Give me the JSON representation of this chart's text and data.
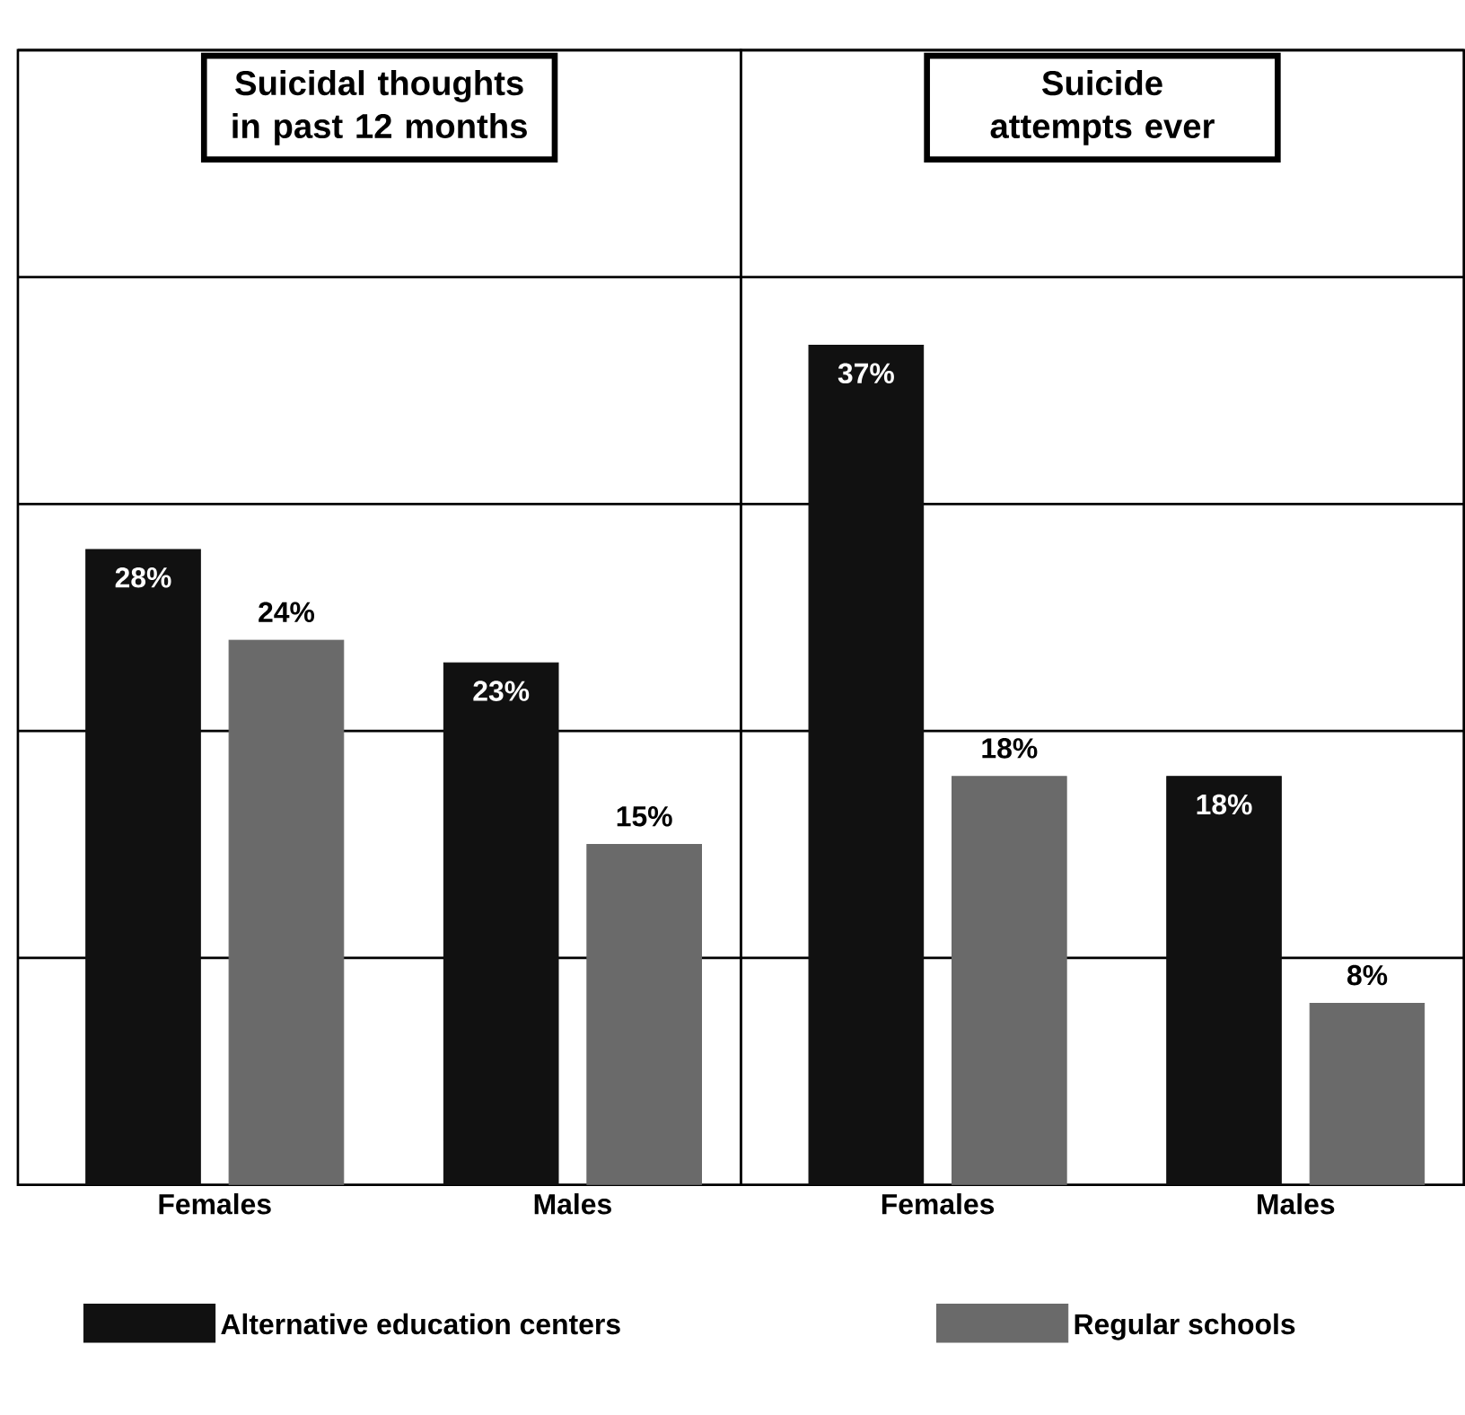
{
  "chart_data": [
    {
      "type": "bar",
      "title": "Suicidal thoughts in past 12 months",
      "categories": [
        "Females",
        "Males"
      ],
      "series": [
        {
          "name": "Alternative education centers",
          "color": "#111111",
          "values": [
            28,
            23
          ],
          "value_labels": [
            "28%",
            "23%"
          ]
        },
        {
          "name": "Regular schools",
          "color": "#6a6a6a",
          "values": [
            24,
            15
          ],
          "value_labels": [
            "24%",
            "15%"
          ]
        }
      ],
      "ylim": [
        0,
        50
      ],
      "yticks": [
        {
          "value": 10,
          "label": null
        },
        {
          "value": 20,
          "label": null
        },
        {
          "value": 30,
          "label": null
        },
        {
          "value": 40,
          "label": null
        },
        {
          "value": 50,
          "label": null
        }
      ],
      "grid": "y",
      "tick_labels": "x",
      "legend": "bottom"
    },
    {
      "type": "bar",
      "title": "Suicide attempts ever",
      "categories": [
        "Females",
        "Males"
      ],
      "series": [
        {
          "color": "#111111",
          "values": [
            37,
            18
          ],
          "value_labels": [
            "37%",
            "18%"
          ]
        },
        {
          "color": "#6a6a6a",
          "values": [
            18,
            8
          ],
          "value_labels": [
            "18%",
            "8%"
          ]
        }
      ],
      "ylim": [
        0,
        50
      ],
      "yticks": [
        {
          "value": 10,
          "label": null
        },
        {
          "value": 20,
          "label": null
        },
        {
          "value": 30,
          "label": null
        },
        {
          "value": 40,
          "label": null
        },
        {
          "value": 50,
          "label": null
        }
      ],
      "grid": "y",
      "tick_labels": "x"
    }
  ]
}
